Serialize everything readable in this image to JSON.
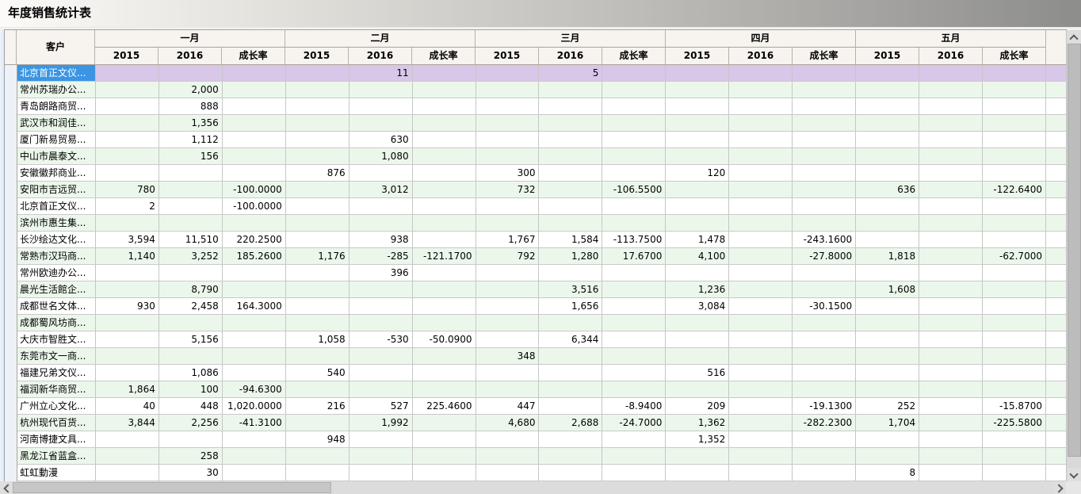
{
  "page": {
    "title": "年度销售统计表"
  },
  "grid": {
    "customer_header": "客户",
    "months": [
      "一月",
      "二月",
      "三月",
      "四月",
      "五月"
    ],
    "year_subheaders": [
      "2015",
      "2016",
      "成长率"
    ],
    "rows": [
      {
        "customer": "北京首正文仪...",
        "selected": true,
        "values": [
          "",
          "",
          "",
          "",
          "11",
          "",
          "",
          "5",
          "",
          "",
          "",
          "",
          "",
          "",
          ""
        ]
      },
      {
        "customer": "常州苏瑞办公...",
        "selected": false,
        "values": [
          "",
          "2,000",
          "",
          "",
          "",
          "",
          "",
          "",
          "",
          "",
          "",
          "",
          "",
          "",
          ""
        ]
      },
      {
        "customer": "青岛朗路商贸...",
        "selected": false,
        "values": [
          "",
          "888",
          "",
          "",
          "",
          "",
          "",
          "",
          "",
          "",
          "",
          "",
          "",
          "",
          ""
        ]
      },
      {
        "customer": "武汉市和润佳...",
        "selected": false,
        "values": [
          "",
          "1,356",
          "",
          "",
          "",
          "",
          "",
          "",
          "",
          "",
          "",
          "",
          "",
          "",
          ""
        ]
      },
      {
        "customer": "厦门新易贸易...",
        "selected": false,
        "values": [
          "",
          "1,112",
          "",
          "",
          "630",
          "",
          "",
          "",
          "",
          "",
          "",
          "",
          "",
          "",
          ""
        ]
      },
      {
        "customer": "中山市晨泰文...",
        "selected": false,
        "values": [
          "",
          "156",
          "",
          "",
          "1,080",
          "",
          "",
          "",
          "",
          "",
          "",
          "",
          "",
          "",
          ""
        ]
      },
      {
        "customer": "安徽徽邦商业...",
        "selected": false,
        "values": [
          "",
          "",
          "",
          "876",
          "",
          "",
          "300",
          "",
          "",
          "120",
          "",
          "",
          "",
          "",
          ""
        ]
      },
      {
        "customer": "安阳市吉远贸...",
        "selected": false,
        "values": [
          "780",
          "",
          "-100.0000",
          "",
          "3,012",
          "",
          "732",
          "",
          "-106.5500",
          "",
          "",
          "",
          "636",
          "",
          "-122.6400"
        ]
      },
      {
        "customer": "北京首正文仪...",
        "selected": false,
        "values": [
          "2",
          "",
          "-100.0000",
          "",
          "",
          "",
          "",
          "",
          "",
          "",
          "",
          "",
          "",
          "",
          ""
        ]
      },
      {
        "customer": "滨州市惠生集...",
        "selected": false,
        "values": [
          "",
          "",
          "",
          "",
          "",
          "",
          "",
          "",
          "",
          "",
          "",
          "",
          "",
          "",
          ""
        ]
      },
      {
        "customer": "长沙绘达文化...",
        "selected": false,
        "values": [
          "3,594",
          "11,510",
          "220.2500",
          "",
          "938",
          "",
          "1,767",
          "1,584",
          "-113.7500",
          "1,478",
          "",
          "-243.1600",
          "",
          "",
          ""
        ]
      },
      {
        "customer": "常熟市汉玛商...",
        "selected": false,
        "values": [
          "1,140",
          "3,252",
          "185.2600",
          "1,176",
          "-285",
          "-121.1700",
          "792",
          "1,280",
          "17.6700",
          "4,100",
          "",
          "-27.8000",
          "1,818",
          "",
          "-62.7000"
        ]
      },
      {
        "customer": "常州欧迪办公...",
        "selected": false,
        "values": [
          "",
          "",
          "",
          "",
          "396",
          "",
          "",
          "",
          "",
          "",
          "",
          "",
          "",
          "",
          ""
        ]
      },
      {
        "customer": "晨光生活館企...",
        "selected": false,
        "values": [
          "",
          "8,790",
          "",
          "",
          "",
          "",
          "",
          "3,516",
          "",
          "1,236",
          "",
          "",
          "1,608",
          "",
          ""
        ]
      },
      {
        "customer": "成都世名文体...",
        "selected": false,
        "values": [
          "930",
          "2,458",
          "164.3000",
          "",
          "",
          "",
          "",
          "1,656",
          "",
          "3,084",
          "",
          "-30.1500",
          "",
          "",
          ""
        ]
      },
      {
        "customer": "成都蜀风坊商...",
        "selected": false,
        "values": [
          "",
          "",
          "",
          "",
          "",
          "",
          "",
          "",
          "",
          "",
          "",
          "",
          "",
          "",
          ""
        ]
      },
      {
        "customer": "大庆市智胜文...",
        "selected": false,
        "values": [
          "",
          "5,156",
          "",
          "1,058",
          "-530",
          "-50.0900",
          "",
          "6,344",
          "",
          "",
          "",
          "",
          "",
          "",
          ""
        ]
      },
      {
        "customer": "东莞市文一商...",
        "selected": false,
        "values": [
          "",
          "",
          "",
          "",
          "",
          "",
          "348",
          "",
          "",
          "",
          "",
          "",
          "",
          "",
          ""
        ]
      },
      {
        "customer": "福建兄弟文仪...",
        "selected": false,
        "values": [
          "",
          "1,086",
          "",
          "540",
          "",
          "",
          "",
          "",
          "",
          "516",
          "",
          "",
          "",
          "",
          ""
        ]
      },
      {
        "customer": "福润新华商贸...",
        "selected": false,
        "values": [
          "1,864",
          "100",
          "-94.6300",
          "",
          "",
          "",
          "",
          "",
          "",
          "",
          "",
          "",
          "",
          "",
          ""
        ]
      },
      {
        "customer": "广州立心文化...",
        "selected": false,
        "values": [
          "40",
          "448",
          "1,020.0000",
          "216",
          "527",
          "225.4600",
          "447",
          "",
          "-8.9400",
          "209",
          "",
          "-19.1300",
          "252",
          "",
          "-15.8700"
        ]
      },
      {
        "customer": "杭州现代百货...",
        "selected": false,
        "values": [
          "3,844",
          "2,256",
          "-41.3100",
          "",
          "1,992",
          "",
          "4,680",
          "2,688",
          "-24.7000",
          "1,362",
          "",
          "-282.2300",
          "1,704",
          "",
          "-225.5800"
        ]
      },
      {
        "customer": "河南博捷文具...",
        "selected": false,
        "values": [
          "",
          "",
          "",
          "948",
          "",
          "",
          "",
          "",
          "",
          "1,352",
          "",
          "",
          "",
          "",
          ""
        ]
      },
      {
        "customer": "黑龙江省蓝盒...",
        "selected": false,
        "values": [
          "",
          "258",
          "",
          "",
          "",
          "",
          "",
          "",
          "",
          "",
          "",
          "",
          "",
          "",
          ""
        ]
      },
      {
        "customer": "虹虹動漫",
        "selected": false,
        "values": [
          "",
          "30",
          "",
          "",
          "",
          "",
          "",
          "",
          "",
          "",
          "",
          "",
          "8",
          "",
          ""
        ]
      }
    ]
  },
  "colors": {
    "selection_blue": "#3b95e4",
    "selected_row_lavender": "#d8c7e8",
    "alt_row_green": "#ecf7ec",
    "header_beige": "#f7f3ee"
  },
  "icons": {
    "scroll_up": "chevron-up",
    "scroll_down": "chevron-down",
    "scroll_left": "chevron-left",
    "scroll_right": "chevron-right"
  }
}
